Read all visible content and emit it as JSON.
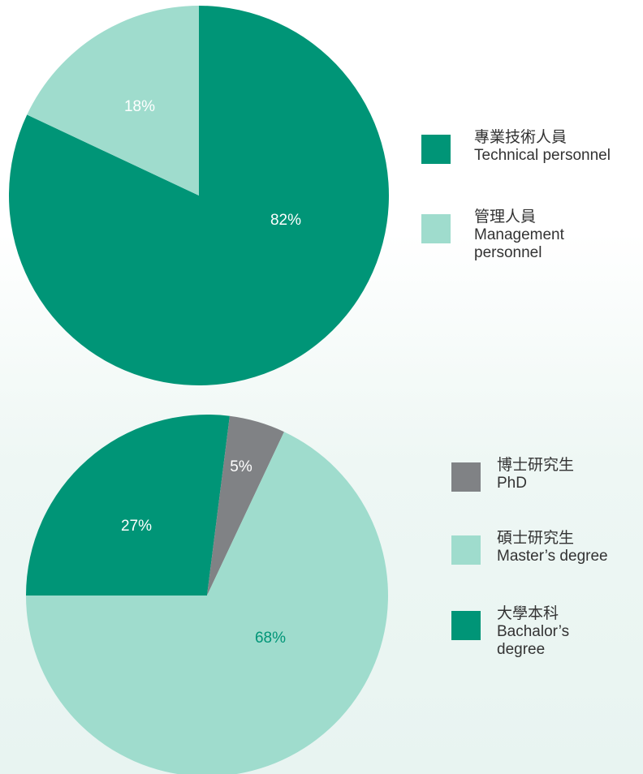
{
  "chart_data": [
    {
      "type": "pie",
      "series": [
        {
          "name": "專業技術人員",
          "name_en": "Technical personnel",
          "color": "#009577",
          "values": [
            82
          ]
        },
        {
          "name": "管理人員",
          "name_en": "Management personnel",
          "color": "#9fdccd",
          "values": [
            18
          ]
        }
      ],
      "value_labels": [
        "82%",
        "18%"
      ]
    },
    {
      "type": "pie",
      "series": [
        {
          "name": "博士研究生",
          "name_en": "PhD",
          "color": "#808285",
          "values": [
            5
          ]
        },
        {
          "name": "碩士研究生",
          "name_en": "Master’s degree",
          "color": "#9fdccd",
          "values": [
            68
          ]
        },
        {
          "name": "大學本科",
          "name_en": "Bachalor’s degree",
          "color": "#009577",
          "values": [
            27
          ]
        }
      ],
      "value_labels": [
        "5%",
        "68%",
        "27%"
      ]
    }
  ]
}
